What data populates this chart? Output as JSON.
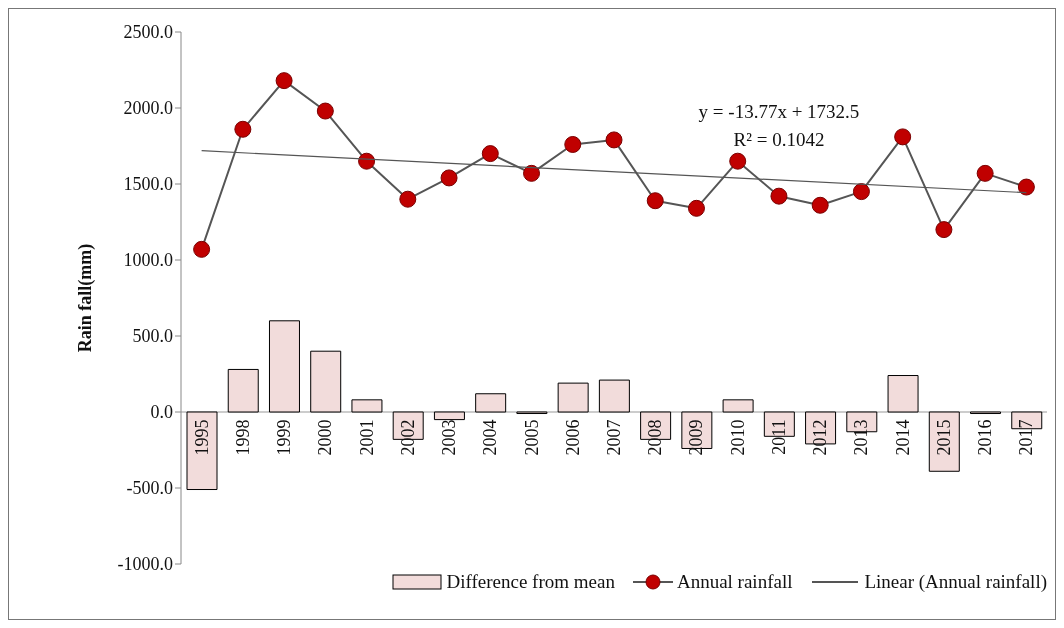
{
  "chart_data": {
    "type": "bar",
    "ylabel": "Rain fall(mm)",
    "categories": [
      "1995",
      "1998",
      "1999",
      "2000",
      "2001",
      "2002",
      "2003",
      "2004",
      "2005",
      "2006",
      "2007",
      "2008",
      "2009",
      "2010",
      "2011",
      "2012",
      "2013",
      "2014",
      "2015",
      "2016",
      "2017"
    ],
    "series": [
      {
        "name": "Difference from mean",
        "color": "#f2dcdb",
        "values": [
          -510,
          280,
          600,
          400,
          80,
          -180,
          -50,
          120,
          -10,
          190,
          210,
          -180,
          -240,
          80,
          -160,
          -210,
          -130,
          240,
          -390,
          -10,
          -110
        ]
      },
      {
        "name": "Annual rainfall",
        "type": "line",
        "color": "#c00000",
        "marker": "circle",
        "values": [
          1070,
          1860,
          2180,
          1980,
          1650,
          1400,
          1540,
          1700,
          1570,
          1760,
          1790,
          1390,
          1340,
          1650,
          1420,
          1360,
          1450,
          1810,
          1200,
          1570,
          1480
        ]
      },
      {
        "name": "Linear (Annual rainfall)",
        "type": "line",
        "color": "#555555",
        "marker": "none",
        "values": [
          1719,
          null,
          null,
          null,
          null,
          null,
          null,
          null,
          null,
          null,
          null,
          null,
          null,
          null,
          null,
          null,
          null,
          null,
          null,
          null,
          1443
        ]
      }
    ],
    "ylim": [
      -1000,
      2500
    ],
    "yticks": [
      {
        "value": -1000,
        "label": "-1000.0"
      },
      {
        "value": -500,
        "label": "-500.0"
      },
      {
        "value": 0,
        "label": "0.0"
      },
      {
        "value": 500,
        "label": "500.0"
      },
      {
        "value": 1000,
        "label": "1000.0"
      },
      {
        "value": 1500,
        "label": "1500.0"
      },
      {
        "value": 2000,
        "label": "2000.0"
      },
      {
        "value": 2500,
        "label": "2500.0"
      }
    ],
    "annotations": [
      "y = -13.77x + 1732.5",
      "R² = 0.1042"
    ],
    "legend": "bottom",
    "grid": false
  }
}
